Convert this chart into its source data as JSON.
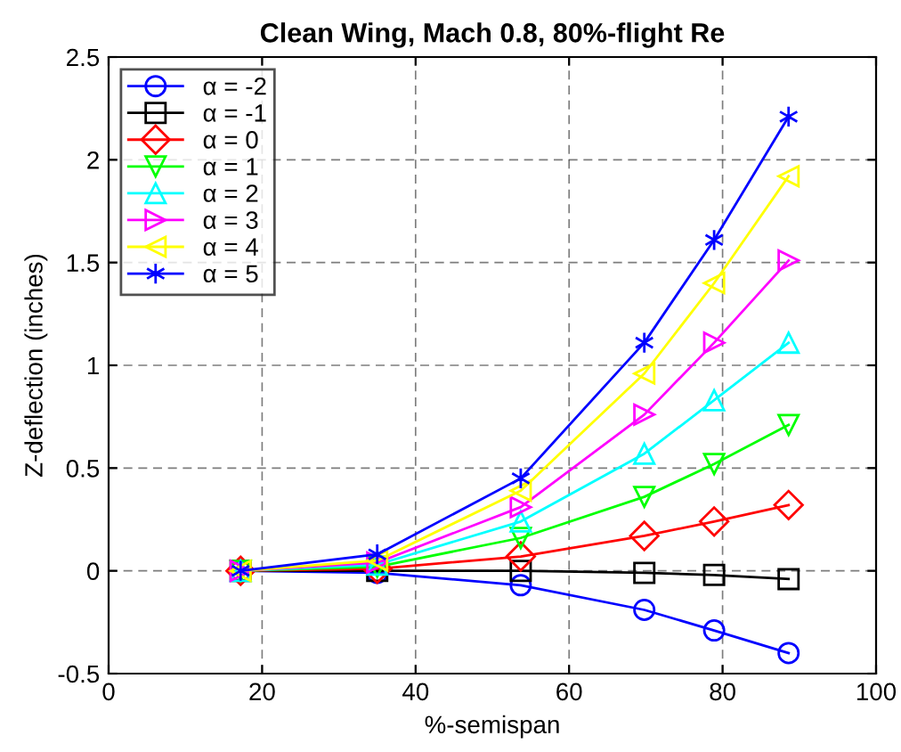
{
  "chart_data": {
    "type": "line",
    "title": "Clean Wing, Mach 0.8, 80%-flight Re",
    "xlabel": "%-semispan",
    "ylabel": "Z-deflection (inches)",
    "x": [
      17.2,
      35,
      53.7,
      69.8,
      78.9,
      88.6
    ],
    "series": [
      {
        "name": "α = -2",
        "color": "#0000ff",
        "marker": "circle",
        "values": [
          0,
          -0.01,
          -0.07,
          -0.19,
          -0.29,
          -0.4
        ]
      },
      {
        "name": "α = -1",
        "color": "#000000",
        "marker": "square",
        "values": [
          0,
          0,
          0,
          -0.01,
          -0.02,
          -0.04
        ]
      },
      {
        "name": "α = 0",
        "color": "#ff0000",
        "marker": "diamond",
        "values": [
          0,
          0.01,
          0.07,
          0.17,
          0.24,
          0.32
        ]
      },
      {
        "name": "α = 1",
        "color": "#00ff00",
        "marker": "triangle-down",
        "values": [
          0,
          0.02,
          0.16,
          0.36,
          0.52,
          0.71
        ]
      },
      {
        "name": "α = 2",
        "color": "#00ffff",
        "marker": "triangle",
        "values": [
          0,
          0.03,
          0.24,
          0.57,
          0.83,
          1.11
        ]
      },
      {
        "name": "α = 3",
        "color": "#ff00ff",
        "marker": "triangle-right",
        "values": [
          0,
          0.04,
          0.31,
          0.76,
          1.11,
          1.51
        ]
      },
      {
        "name": "α = 4",
        "color": "#ffff00",
        "marker": "triangle-left",
        "values": [
          0,
          0.05,
          0.39,
          0.96,
          1.4,
          1.92
        ]
      },
      {
        "name": "α = 5",
        "color": "#0000ff",
        "marker": "cross",
        "values": [
          0,
          0.08,
          0.45,
          1.11,
          1.61,
          2.21
        ]
      }
    ],
    "xlim": [
      0,
      100
    ],
    "xticks": [
      0,
      20,
      40,
      60,
      80,
      100
    ],
    "ylim": [
      -0.5,
      2.5
    ],
    "yticks": [
      -0.5,
      0,
      0.5,
      1,
      1.5,
      2,
      2.5
    ],
    "grid": true,
    "legend": "top left",
    "line_style": "solid"
  }
}
